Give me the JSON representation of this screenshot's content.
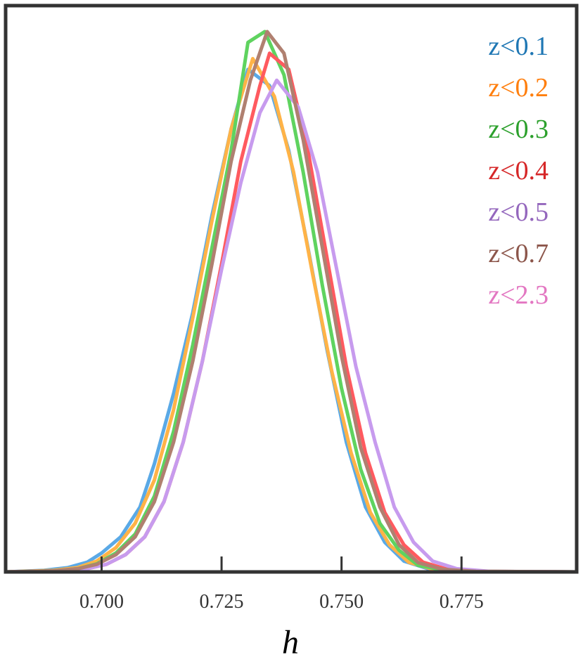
{
  "chart_data": {
    "type": "line",
    "title": "",
    "xlabel": "h",
    "ylabel": "",
    "xlim": [
      0.68,
      0.799
    ],
    "ylim": [
      0,
      1.0
    ],
    "x_ticks": [
      "0.700",
      "0.725",
      "0.750",
      "0.775"
    ],
    "x_tick_values": [
      0.7,
      0.725,
      0.75,
      0.775
    ],
    "grid": false,
    "legend_placement": "top-right",
    "series": [
      {
        "name": "z<0.1",
        "line_color": "#5aa9e6",
        "label_color": "#1f77b4",
        "points": [
          [
            0.68,
            0.0
          ],
          [
            0.688,
            0.003
          ],
          [
            0.693,
            0.008
          ],
          [
            0.697,
            0.018
          ],
          [
            0.7,
            0.035
          ],
          [
            0.704,
            0.065
          ],
          [
            0.708,
            0.12
          ],
          [
            0.711,
            0.2
          ],
          [
            0.715,
            0.33
          ],
          [
            0.719,
            0.48
          ],
          [
            0.723,
            0.66
          ],
          [
            0.727,
            0.82
          ],
          [
            0.7305,
            0.93
          ],
          [
            0.735,
            0.9
          ],
          [
            0.739,
            0.78
          ],
          [
            0.743,
            0.6
          ],
          [
            0.747,
            0.41
          ],
          [
            0.751,
            0.24
          ],
          [
            0.755,
            0.12
          ],
          [
            0.759,
            0.055
          ],
          [
            0.763,
            0.02
          ],
          [
            0.768,
            0.006
          ],
          [
            0.775,
            0.001
          ],
          [
            0.799,
            0.0
          ]
        ]
      },
      {
        "name": "z<0.2",
        "line_color": "#ffb347",
        "label_color": "#ff7f0e",
        "points": [
          [
            0.68,
            0.0
          ],
          [
            0.69,
            0.003
          ],
          [
            0.695,
            0.008
          ],
          [
            0.699,
            0.02
          ],
          [
            0.703,
            0.045
          ],
          [
            0.707,
            0.09
          ],
          [
            0.711,
            0.17
          ],
          [
            0.715,
            0.3
          ],
          [
            0.719,
            0.47
          ],
          [
            0.723,
            0.65
          ],
          [
            0.727,
            0.82
          ],
          [
            0.7315,
            0.95
          ],
          [
            0.736,
            0.88
          ],
          [
            0.74,
            0.74
          ],
          [
            0.744,
            0.55
          ],
          [
            0.748,
            0.37
          ],
          [
            0.752,
            0.22
          ],
          [
            0.756,
            0.11
          ],
          [
            0.76,
            0.05
          ],
          [
            0.764,
            0.018
          ],
          [
            0.769,
            0.005
          ],
          [
            0.776,
            0.001
          ],
          [
            0.799,
            0.0
          ]
        ]
      },
      {
        "name": "z<0.3",
        "line_color": "#5fd35f",
        "label_color": "#2ca02c",
        "points": [
          [
            0.68,
            0.0
          ],
          [
            0.69,
            0.002
          ],
          [
            0.695,
            0.006
          ],
          [
            0.699,
            0.015
          ],
          [
            0.703,
            0.035
          ],
          [
            0.707,
            0.07
          ],
          [
            0.711,
            0.14
          ],
          [
            0.715,
            0.26
          ],
          [
            0.719,
            0.42
          ],
          [
            0.723,
            0.6
          ],
          [
            0.727,
            0.78
          ],
          [
            0.7305,
            0.98
          ],
          [
            0.734,
            1.0
          ],
          [
            0.738,
            0.92
          ],
          [
            0.742,
            0.74
          ],
          [
            0.746,
            0.53
          ],
          [
            0.75,
            0.34
          ],
          [
            0.754,
            0.19
          ],
          [
            0.758,
            0.09
          ],
          [
            0.762,
            0.04
          ],
          [
            0.766,
            0.012
          ],
          [
            0.771,
            0.004
          ],
          [
            0.778,
            0.001
          ],
          [
            0.799,
            0.0
          ]
        ]
      },
      {
        "name": "z<0.4",
        "line_color": "#ff5a5f",
        "label_color": "#d62728",
        "points": [
          [
            0.68,
            0.0
          ],
          [
            0.692,
            0.002
          ],
          [
            0.697,
            0.006
          ],
          [
            0.701,
            0.014
          ],
          [
            0.705,
            0.032
          ],
          [
            0.709,
            0.065
          ],
          [
            0.713,
            0.13
          ],
          [
            0.717,
            0.24
          ],
          [
            0.721,
            0.39
          ],
          [
            0.725,
            0.57
          ],
          [
            0.729,
            0.76
          ],
          [
            0.733,
            0.9
          ],
          [
            0.735,
            0.96
          ],
          [
            0.739,
            0.93
          ],
          [
            0.743,
            0.78
          ],
          [
            0.747,
            0.58
          ],
          [
            0.751,
            0.38
          ],
          [
            0.755,
            0.22
          ],
          [
            0.759,
            0.11
          ],
          [
            0.763,
            0.05
          ],
          [
            0.767,
            0.018
          ],
          [
            0.772,
            0.005
          ],
          [
            0.779,
            0.001
          ],
          [
            0.799,
            0.0
          ]
        ]
      },
      {
        "name": "z<0.5",
        "line_color": "#c79bee",
        "label_color": "#9467bd",
        "points": [
          [
            0.68,
            0.0
          ],
          [
            0.692,
            0.002
          ],
          [
            0.697,
            0.006
          ],
          [
            0.701,
            0.014
          ],
          [
            0.705,
            0.032
          ],
          [
            0.709,
            0.065
          ],
          [
            0.713,
            0.13
          ],
          [
            0.717,
            0.24
          ],
          [
            0.721,
            0.39
          ],
          [
            0.725,
            0.56
          ],
          [
            0.729,
            0.72
          ],
          [
            0.733,
            0.85
          ],
          [
            0.7365,
            0.91
          ],
          [
            0.741,
            0.86
          ],
          [
            0.745,
            0.74
          ],
          [
            0.749,
            0.56
          ],
          [
            0.753,
            0.38
          ],
          [
            0.757,
            0.24
          ],
          [
            0.761,
            0.12
          ],
          [
            0.765,
            0.055
          ],
          [
            0.769,
            0.02
          ],
          [
            0.774,
            0.006
          ],
          [
            0.781,
            0.001
          ],
          [
            0.799,
            0.0
          ]
        ]
      },
      {
        "name": "z<0.7",
        "line_color": "#b08070",
        "label_color": "#8c564b",
        "points": [
          [
            0.68,
            0.0
          ],
          [
            0.69,
            0.002
          ],
          [
            0.695,
            0.006
          ],
          [
            0.699,
            0.014
          ],
          [
            0.703,
            0.032
          ],
          [
            0.707,
            0.065
          ],
          [
            0.711,
            0.13
          ],
          [
            0.715,
            0.24
          ],
          [
            0.719,
            0.39
          ],
          [
            0.723,
            0.57
          ],
          [
            0.727,
            0.76
          ],
          [
            0.731,
            0.91
          ],
          [
            0.7345,
            1.0
          ],
          [
            0.738,
            0.96
          ],
          [
            0.742,
            0.8
          ],
          [
            0.746,
            0.6
          ],
          [
            0.75,
            0.4
          ],
          [
            0.754,
            0.23
          ],
          [
            0.758,
            0.12
          ],
          [
            0.762,
            0.05
          ],
          [
            0.766,
            0.017
          ],
          [
            0.771,
            0.005
          ],
          [
            0.778,
            0.001
          ],
          [
            0.799,
            0.0
          ]
        ]
      },
      {
        "name": "z<2.3",
        "line_color": "#e377c2",
        "label_color": "#e377c2",
        "points": []
      }
    ]
  }
}
